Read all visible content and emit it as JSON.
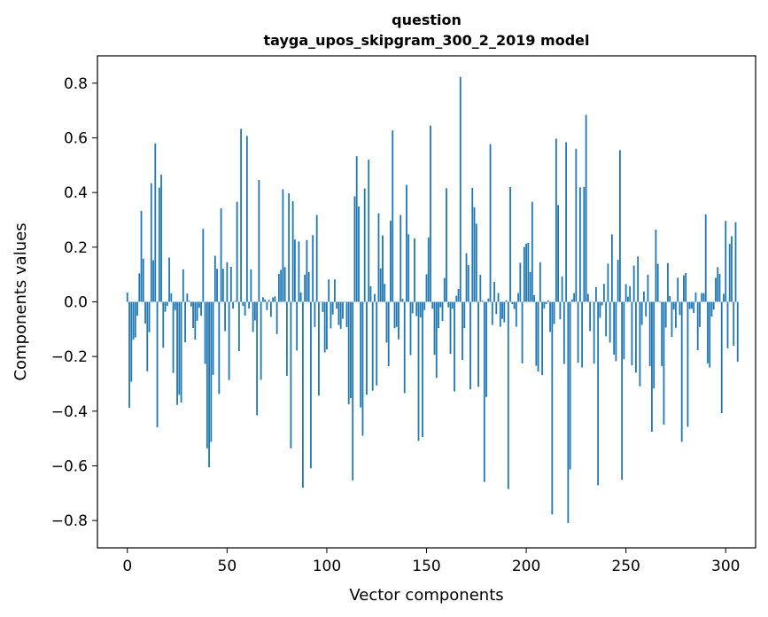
{
  "chart_data": {
    "type": "bar",
    "title": [
      "question",
      "tayga_upos_skipgram_300_2_2019 model"
    ],
    "xlabel": "Vector components",
    "ylabel": "Components values",
    "xlim": [
      -15,
      315
    ],
    "ylim": [
      -0.9,
      0.9
    ],
    "xticks": [
      0,
      50,
      100,
      150,
      200,
      250,
      300
    ],
    "yticks": [
      -0.8,
      -0.6,
      -0.4,
      -0.2,
      0.0,
      0.2,
      0.4,
      0.6,
      0.8
    ],
    "ytick_labels": [
      "−0.8",
      "−0.6",
      "−0.4",
      "−0.2",
      "0.0",
      "0.2",
      "0.4",
      "0.6",
      "0.8"
    ],
    "xtick_labels": [
      "0",
      "50",
      "100",
      "150",
      "200",
      "250",
      "300"
    ],
    "bar_color": "#1f77b4",
    "grid": false,
    "values": [
      0.034,
      -0.387,
      -0.292,
      -0.139,
      -0.13,
      -0.05,
      0.104,
      0.333,
      0.157,
      -0.079,
      -0.254,
      -0.111,
      0.434,
      0.152,
      0.58,
      -0.459,
      0.418,
      0.465,
      -0.168,
      -0.036,
      -0.014,
      0.162,
      0.031,
      -0.26,
      -0.03,
      -0.377,
      -0.34,
      -0.368,
      0.119,
      -0.148,
      0.03,
      0.004,
      -0.017,
      -0.096,
      -0.138,
      -0.069,
      -0.021,
      -0.05,
      0.267,
      -0.227,
      -0.536,
      -0.605,
      -0.512,
      -0.267,
      0.169,
      0.121,
      -0.337,
      0.342,
      0.121,
      -0.107,
      0.145,
      -0.286,
      0.128,
      -0.025,
      0.003,
      0.366,
      -0.18,
      0.633,
      -0.015,
      -0.05,
      0.607,
      -0.024,
      0.119,
      -0.11,
      -0.068,
      -0.415,
      0.446,
      -0.285,
      0.017,
      0.008,
      -0.03,
      0.007,
      -0.055,
      0.016,
      0.02,
      -0.118,
      0.102,
      0.117,
      0.412,
      0.127,
      -0.271,
      0.397,
      -0.536,
      0.368,
      0.228,
      -0.178,
      0.221,
      0.034,
      -0.68,
      0.099,
      0.226,
      0.109,
      -0.609,
      0.244,
      -0.092,
      0.318,
      -0.343,
      -0.001,
      -0.037,
      -0.185,
      -0.174,
      0.082,
      -0.097,
      -0.046,
      0.082,
      -0.025,
      -0.085,
      -0.099,
      -0.062,
      0.0,
      -0.092,
      -0.375,
      -0.352,
      -0.653,
      0.386,
      0.533,
      0.349,
      -0.386,
      -0.49,
      0.415,
      -0.34,
      0.52,
      0.057,
      -0.325,
      0.029,
      -0.306,
      0.324,
      0.122,
      0.243,
      0.066,
      -0.149,
      -0.235,
      0.297,
      0.627,
      -0.097,
      -0.092,
      -0.137,
      0.318,
      0.011,
      -0.334,
      0.428,
      0.247,
      -0.195,
      -0.042,
      0.232,
      -0.052,
      -0.509,
      -0.057,
      -0.495,
      -0.03,
      0.101,
      0.235,
      0.645,
      -0.025,
      -0.194,
      -0.278,
      -0.096,
      -0.02,
      -0.07,
      0.087,
      0.416,
      -0.02,
      -0.19,
      -0.025,
      -0.328,
      0.022,
      0.047,
      0.823,
      -0.213,
      -0.096,
      0.178,
      0.134,
      -0.32,
      0.417,
      0.346,
      0.286,
      -0.311,
      0.099,
      0.004,
      -0.659,
      -0.348,
      0.012,
      0.577,
      -0.084,
      0.073,
      -0.045,
      0.032,
      -0.091,
      -0.062,
      -0.075,
      0.006,
      -0.685,
      0.42,
      -0.008,
      -0.026,
      -0.091,
      0.032,
      0.143,
      -0.225,
      0.201,
      0.213,
      0.216,
      0.109,
      0.366,
      0.024,
      -0.234,
      -0.255,
      0.145,
      -0.268,
      -0.024,
      -0.008,
      0.005,
      -0.11,
      -0.778,
      -0.081,
      0.597,
      0.354,
      -0.064,
      0.093,
      -0.227,
      0.584,
      -0.809,
      -0.613,
      0.009,
      0.032,
      0.56,
      -0.223,
      0.419,
      -0.24,
      0.42,
      0.684,
      0.029,
      -0.107,
      0.0,
      -0.226,
      0.054,
      -0.671,
      -0.058,
      -0.013,
      0.066,
      -0.126,
      0.14,
      -0.149,
      0.247,
      -0.193,
      -0.217,
      0.154,
      0.555,
      -0.651,
      -0.21,
      0.065,
      0.019,
      0.057,
      -0.232,
      0.133,
      -0.259,
      0.166,
      -0.309,
      -0.084,
      0.038,
      -0.053,
      0.099,
      -0.235,
      -0.475,
      -0.317,
      0.264,
      0.139,
      -0.002,
      -0.235,
      -0.449,
      -0.094,
      0.142,
      0.021,
      -0.128,
      -0.028,
      -0.095,
      0.088,
      -0.048,
      -0.512,
      0.097,
      0.106,
      -0.457,
      -0.026,
      -0.025,
      -0.041,
      0.034,
      -0.177,
      -0.092,
      0.032,
      0.032,
      0.32,
      -0.225,
      -0.24,
      -0.054,
      -0.028,
      0.088,
      0.127,
      0.102,
      -0.407,
      0.029,
      0.296,
      -0.17,
      0.212,
      0.24,
      -0.161,
      0.291,
      -0.219
    ]
  }
}
